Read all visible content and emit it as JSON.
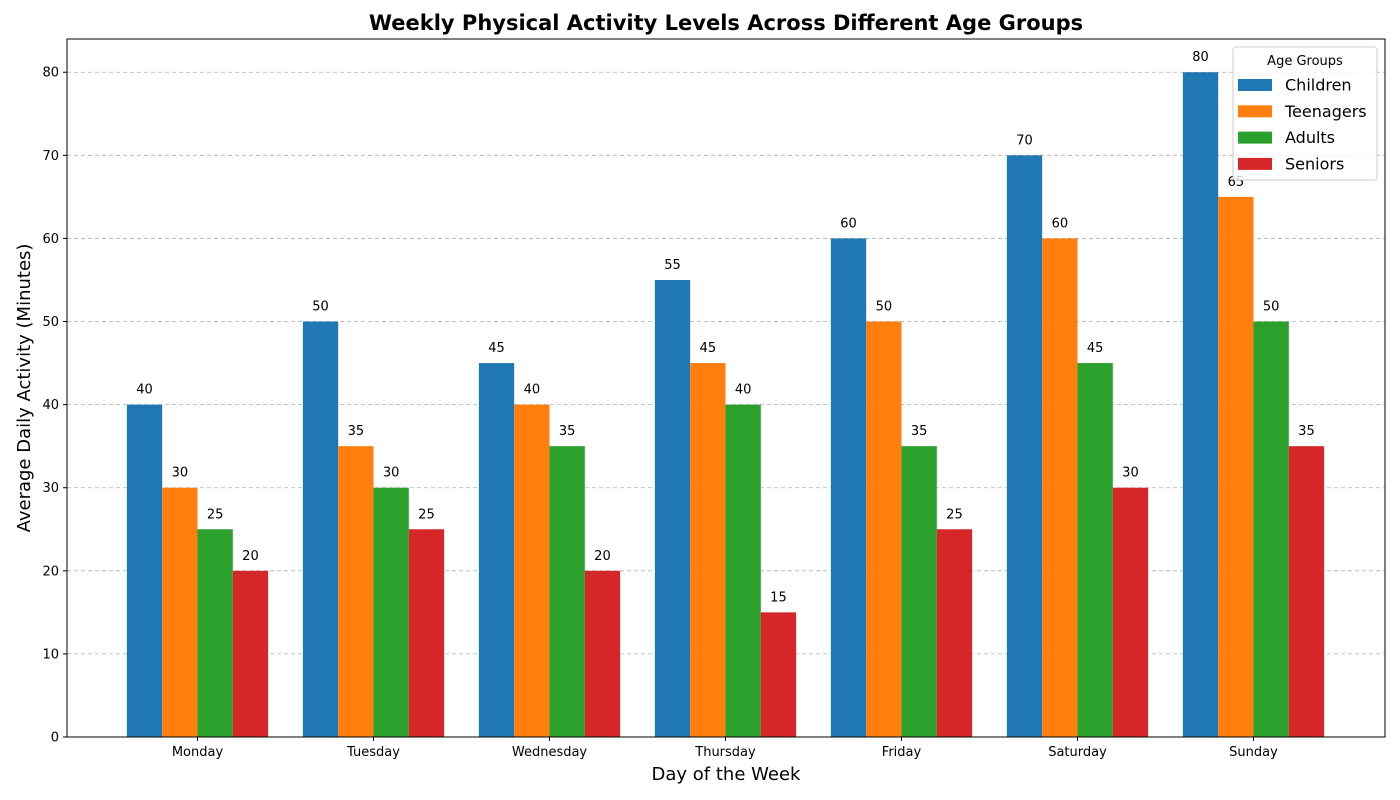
{
  "chart_data": {
    "type": "bar",
    "title": "Weekly Physical Activity Levels Across Different Age Groups",
    "xlabel": "Day of the Week",
    "ylabel": "Average Daily Activity (Minutes)",
    "categories": [
      "Monday",
      "Tuesday",
      "Wednesday",
      "Thursday",
      "Friday",
      "Saturday",
      "Sunday"
    ],
    "series": [
      {
        "name": "Children",
        "color": "#1f77b4",
        "values": [
          40,
          50,
          45,
          55,
          60,
          70,
          80
        ]
      },
      {
        "name": "Teenagers",
        "color": "#ff7f0e",
        "values": [
          30,
          35,
          40,
          45,
          50,
          60,
          65
        ]
      },
      {
        "name": "Adults",
        "color": "#2ca02c",
        "values": [
          25,
          30,
          35,
          40,
          35,
          45,
          50
        ]
      },
      {
        "name": "Seniors",
        "color": "#d62728",
        "values": [
          20,
          25,
          20,
          15,
          25,
          30,
          35
        ]
      }
    ],
    "ylim": [
      0,
      84
    ],
    "yticks": [
      0,
      10,
      20,
      30,
      40,
      50,
      60,
      70,
      80
    ],
    "grid": true,
    "legend": {
      "title": "Age Groups",
      "placement": "top-right"
    }
  }
}
